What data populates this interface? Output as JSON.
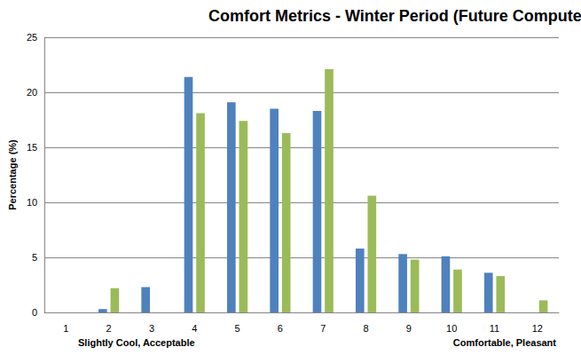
{
  "chart_data": {
    "type": "bar",
    "title": "Comfort Metrics - Winter Period (Future Computers)",
    "y_label": "Percentage (%)",
    "annotations": [
      "Slightly Cool, Acceptable",
      "Comfortable, Pleasant"
    ],
    "categories": [
      "1",
      "2",
      "3",
      "4",
      "5",
      "6",
      "7",
      "8",
      "9",
      "10",
      "11",
      "12"
    ],
    "series": [
      {
        "color": "#4f81bd",
        "values": [
          0,
          0.3,
          2.3,
          21.4,
          19.1,
          18.5,
          18.3,
          5.8,
          5.3,
          5.1,
          3.6,
          0
        ]
      },
      {
        "color": "#9bbb59",
        "values": [
          0,
          2.2,
          0,
          18.1,
          17.4,
          16.3,
          22.1,
          10.6,
          4.8,
          3.9,
          3.3,
          1.1
        ]
      }
    ],
    "ylim": [
      0,
      25
    ],
    "yticks": [
      0,
      5,
      10,
      15,
      20,
      25
    ],
    "grid": true
  }
}
